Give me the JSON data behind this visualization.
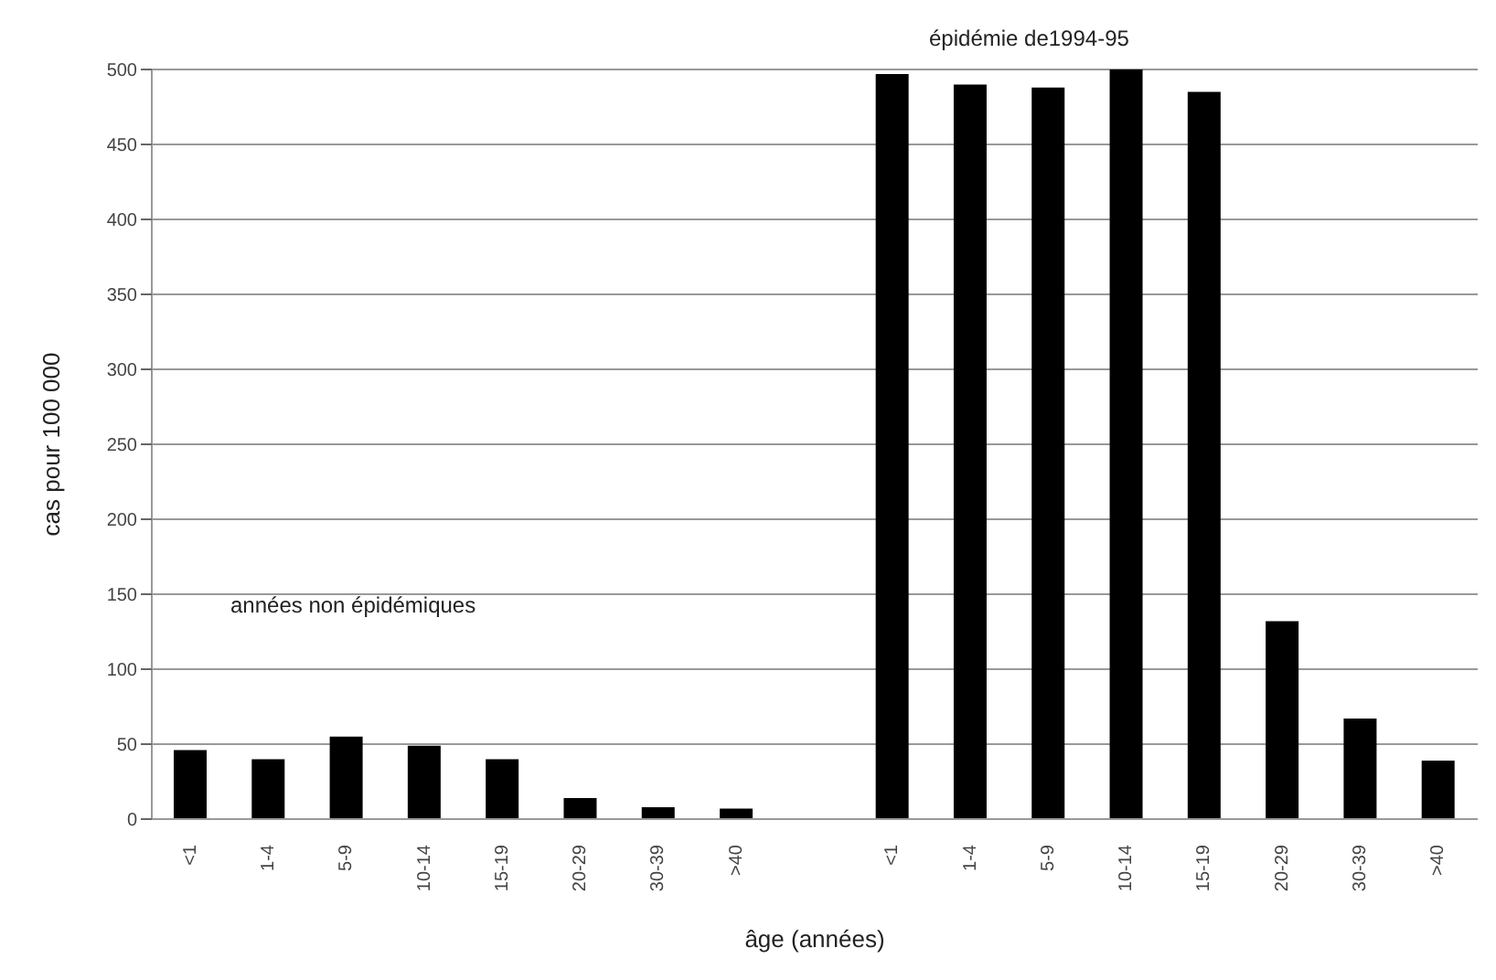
{
  "chart_data": {
    "type": "bar",
    "xlabel": "âge (années)",
    "ylabel": "cas pour 100 000",
    "categories": [
      "<1",
      "1-4",
      "5-9",
      "10-14",
      "15-19",
      "20-29",
      "30-39",
      ">40",
      null,
      "<1",
      "1-4",
      "5-9",
      "10-14",
      "15-19",
      "20-29",
      "30-39",
      ">40"
    ],
    "values": [
      46,
      40,
      55,
      49,
      40,
      14,
      8,
      7,
      null,
      497,
      490,
      488,
      500,
      485,
      132,
      67,
      39
    ],
    "color": "#000000",
    "ylim": [
      0,
      500
    ],
    "yticks": [
      0,
      50,
      100,
      150,
      200,
      250,
      300,
      350,
      400,
      450,
      500
    ],
    "grid": "y",
    "annotations": [
      "années non épidémiques",
      "épidémie de1994-95"
    ]
  }
}
